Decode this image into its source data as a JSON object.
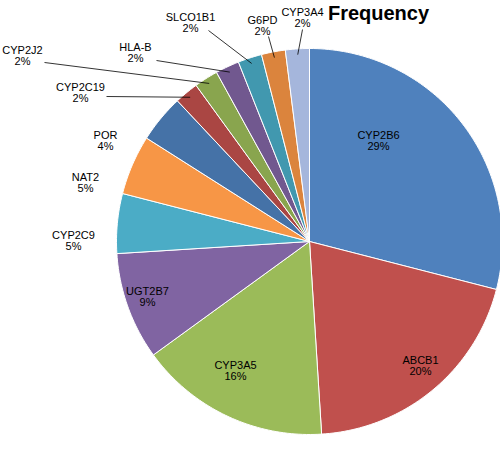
{
  "chart_data": {
    "type": "pie",
    "title": "Frequency",
    "categories": [
      "CYP2B6",
      "ABCB1",
      "CYP3A5",
      "UGT2B7",
      "CYP2C9",
      "NAT2",
      "POR",
      "CYP2C19",
      "CYP2J2",
      "HLA-B",
      "SLCO1B1",
      "G6PD",
      "CYP3A4"
    ],
    "values": [
      29,
      20,
      16,
      9,
      5,
      5,
      4,
      2,
      2,
      2,
      2,
      2,
      2
    ],
    "value_labels": [
      "29%",
      "20%",
      "16%",
      "9%",
      "5%",
      "5%",
      "4%",
      "2%",
      "2%",
      "2%",
      "2%",
      "2%",
      "2%"
    ],
    "colors": [
      "#4f81bd",
      "#c0504d",
      "#9bbb59",
      "#8064a2",
      "#4bacc6",
      "#f79646",
      "#4572a7",
      "#aa4643",
      "#89a54e",
      "#71588f",
      "#4198af",
      "#db843d",
      "#a5b6dc"
    ],
    "data_labels": true
  }
}
